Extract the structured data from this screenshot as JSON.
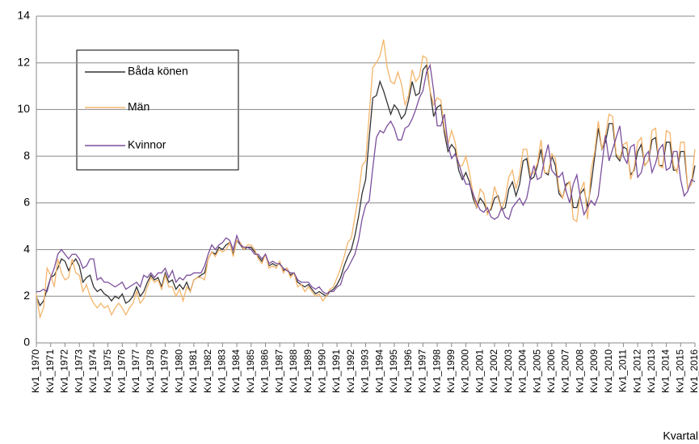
{
  "chart_data": {
    "type": "line",
    "x_label": "Kvartal",
    "categories": [
      "Kv1_1970",
      null,
      null,
      null,
      "Kv1_1971",
      null,
      null,
      null,
      "Kv1_1972",
      null,
      null,
      null,
      "Kv1_1973",
      null,
      null,
      null,
      "Kv1_1974",
      null,
      null,
      null,
      "Kv1_1975",
      null,
      null,
      null,
      "Kv1_1976",
      null,
      null,
      null,
      "Kv1_1977",
      null,
      null,
      null,
      "Kv1_1978",
      null,
      null,
      null,
      "Kv1_1979",
      null,
      null,
      null,
      "Kv1_1980",
      null,
      null,
      null,
      "Kv1_1981",
      null,
      null,
      null,
      "Kv1_1982",
      null,
      null,
      null,
      "Kv1_1983",
      null,
      null,
      null,
      "Kv1_1984",
      null,
      null,
      null,
      "Kv1_1985",
      null,
      null,
      null,
      "Kv1_1986",
      null,
      null,
      null,
      "Kv1_1987",
      null,
      null,
      null,
      "Kv1_1988",
      null,
      null,
      null,
      "Kv1_1989",
      null,
      null,
      null,
      "Kv1_1990",
      null,
      null,
      null,
      "Kv1_1991",
      null,
      null,
      null,
      "Kv1_1992",
      null,
      null,
      null,
      "Kv1_1993",
      null,
      null,
      null,
      "Kv1_1994",
      null,
      null,
      null,
      "Kv1_1995",
      null,
      null,
      null,
      "Kv1_1996",
      null,
      null,
      null,
      "Kv1_1997",
      null,
      null,
      null,
      "Kv1_1998",
      null,
      null,
      null,
      "Kv1_1999",
      null,
      null,
      null,
      "Kv1_2000",
      null,
      null,
      null,
      "Kv1_2001",
      null,
      null,
      null,
      "Kv1_2002",
      null,
      null,
      null,
      "Kv1_2003",
      null,
      null,
      null,
      "Kv1_2004",
      null,
      null,
      null,
      "Kv1_2005",
      null,
      null,
      null,
      "Kv1_2006",
      null,
      null,
      null,
      "Kv1_2007",
      null,
      null,
      null,
      "Kv1_2008",
      null,
      null,
      null,
      "Kv1_2009",
      null,
      null,
      null,
      "Kv1_2010",
      null,
      null,
      null,
      "Kv1_2011",
      null,
      null,
      null,
      "Kv1_2012",
      null,
      null,
      null,
      "Kv1_2013",
      null,
      null,
      null,
      "Kv1_2014",
      null,
      null,
      null,
      "Kv1_2015",
      null,
      null,
      null,
      "Kv1_2016"
    ],
    "series": [
      {
        "name": "Båda könen",
        "color": "#333333",
        "values": [
          2.0,
          1.6,
          1.8,
          2.3,
          2.8,
          2.9,
          3.2,
          3.6,
          3.5,
          3.1,
          3.4,
          3.6,
          3.3,
          2.6,
          2.8,
          2.9,
          2.4,
          2.2,
          2.3,
          2.1,
          2.0,
          1.8,
          2.0,
          1.9,
          2.1,
          1.7,
          1.8,
          2.0,
          2.4,
          2.0,
          2.2,
          2.6,
          2.9,
          2.7,
          2.8,
          2.4,
          3.0,
          2.6,
          2.7,
          2.3,
          2.5,
          2.3,
          2.6,
          2.2,
          2.7,
          2.8,
          2.9,
          3.0,
          3.6,
          3.9,
          3.8,
          4.1,
          4.0,
          4.2,
          4.3,
          3.8,
          4.4,
          4.2,
          4.0,
          4.1,
          4.1,
          3.9,
          3.7,
          3.5,
          3.8,
          3.3,
          3.4,
          3.3,
          3.4,
          3.1,
          3.2,
          2.9,
          3.0,
          2.6,
          2.5,
          2.4,
          2.5,
          2.3,
          2.1,
          2.2,
          2.1,
          2.0,
          2.2,
          2.3,
          2.5,
          2.8,
          3.3,
          3.7,
          4.0,
          4.6,
          5.4,
          6.4,
          7.0,
          8.8,
          10.5,
          10.6,
          11.2,
          10.8,
          10.3,
          9.8,
          10.2,
          10.0,
          9.6,
          9.8,
          10.4,
          11.2,
          10.6,
          10.7,
          11.7,
          11.9,
          10.8,
          9.7,
          10.1,
          10.2,
          9.0,
          8.2,
          8.5,
          8.3,
          7.4,
          7.0,
          7.3,
          6.9,
          6.2,
          5.8,
          6.2,
          6.0,
          5.6,
          5.7,
          6.2,
          6.3,
          5.7,
          5.8,
          6.6,
          6.9,
          6.3,
          6.8,
          7.8,
          7.9,
          7.0,
          7.1,
          7.6,
          8.3,
          7.3,
          7.2,
          8.0,
          7.6,
          6.4,
          6.2,
          6.8,
          6.9,
          5.8,
          5.8,
          6.4,
          6.6,
          5.8,
          6.8,
          8.0,
          9.2,
          8.3,
          8.6,
          9.4,
          9.4,
          8.0,
          7.8,
          8.4,
          8.3,
          7.2,
          7.4,
          8.2,
          8.5,
          7.6,
          7.8,
          8.7,
          8.8,
          7.6,
          7.6,
          8.6,
          8.6,
          7.4,
          7.4,
          8.2,
          8.2,
          6.6,
          6.8,
          7.6
        ]
      },
      {
        "name": "Män",
        "color": "#f5b56b",
        "values": [
          2.1,
          1.1,
          1.5,
          3.2,
          2.9,
          2.4,
          3.6,
          3.0,
          2.7,
          2.8,
          3.6,
          3.0,
          2.9,
          2.2,
          2.5,
          2.0,
          1.7,
          1.5,
          1.7,
          1.5,
          1.6,
          1.2,
          1.5,
          1.7,
          1.5,
          1.2,
          1.5,
          1.7,
          2.2,
          1.7,
          1.9,
          2.4,
          2.8,
          2.6,
          2.7,
          2.3,
          2.9,
          2.4,
          2.4,
          2.0,
          2.3,
          1.8,
          2.4,
          2.2,
          2.7,
          2.8,
          2.8,
          2.7,
          3.6,
          3.9,
          3.7,
          4.0,
          3.9,
          4.0,
          4.3,
          3.7,
          4.4,
          4.3,
          4.0,
          4.2,
          4.2,
          4.0,
          3.6,
          3.4,
          3.8,
          3.2,
          3.3,
          3.2,
          3.5,
          3.0,
          3.2,
          2.8,
          3.0,
          2.4,
          2.5,
          2.2,
          2.4,
          2.2,
          2.0,
          2.1,
          1.8,
          2.0,
          2.3,
          2.4,
          2.8,
          3.2,
          3.7,
          4.3,
          4.5,
          5.4,
          6.3,
          7.6,
          7.8,
          9.8,
          11.8,
          12.0,
          12.3,
          13.0,
          11.8,
          11.2,
          11.1,
          11.6,
          11.1,
          10.2,
          10.6,
          11.7,
          11.2,
          11.4,
          12.3,
          12.2,
          10.8,
          10.2,
          10.5,
          10.4,
          9.2,
          8.5,
          9.1,
          8.6,
          7.6,
          7.6,
          8.0,
          7.3,
          6.4,
          5.8,
          6.6,
          6.4,
          5.5,
          5.8,
          6.7,
          6.2,
          5.7,
          6.2,
          7.1,
          7.4,
          6.6,
          7.2,
          8.3,
          8.3,
          7.2,
          7.3,
          7.7,
          8.7,
          7.3,
          7.3,
          8.1,
          7.9,
          6.6,
          6.2,
          6.7,
          6.9,
          5.3,
          5.2,
          6.5,
          6.9,
          5.3,
          7.4,
          8.2,
          9.5,
          8.3,
          8.9,
          9.8,
          9.7,
          8.1,
          7.9,
          8.5,
          8.6,
          7.0,
          7.5,
          8.6,
          8.8,
          7.6,
          7.8,
          9.1,
          9.2,
          7.6,
          7.5,
          9.1,
          9.0,
          7.6,
          7.3,
          8.6,
          8.6,
          6.6,
          6.8,
          8.3
        ]
      },
      {
        "name": "Kvinnor",
        "color": "#7b4f9d",
        "values": [
          2.2,
          2.2,
          2.3,
          2.2,
          2.8,
          3.2,
          3.8,
          4.0,
          3.8,
          3.6,
          3.8,
          3.8,
          3.6,
          3.2,
          3.3,
          3.6,
          3.6,
          2.7,
          2.8,
          2.6,
          2.6,
          2.5,
          2.4,
          2.5,
          2.6,
          2.3,
          2.4,
          2.5,
          2.6,
          2.4,
          2.9,
          2.8,
          3.0,
          2.8,
          3.0,
          3.0,
          3.2,
          2.8,
          3.1,
          2.6,
          2.8,
          2.7,
          2.9,
          2.9,
          3.0,
          3.0,
          3.0,
          3.3,
          3.8,
          4.2,
          4.0,
          4.2,
          4.3,
          4.5,
          4.4,
          4.0,
          4.6,
          4.2,
          4.1,
          4.1,
          4.0,
          3.8,
          3.8,
          3.6,
          3.8,
          3.4,
          3.5,
          3.4,
          3.4,
          3.2,
          3.1,
          3.0,
          3.0,
          2.7,
          2.6,
          2.6,
          2.6,
          2.4,
          2.3,
          2.4,
          2.2,
          2.1,
          2.2,
          2.2,
          2.4,
          2.5,
          3.0,
          3.2,
          3.5,
          3.8,
          4.4,
          5.3,
          5.9,
          6.1,
          7.5,
          8.8,
          9.1,
          9.0,
          9.3,
          9.5,
          9.2,
          8.7,
          8.7,
          9.2,
          9.3,
          9.6,
          10.0,
          10.5,
          10.8,
          11.6,
          11.9,
          10.8,
          9.3,
          9.3,
          9.8,
          8.5,
          7.9,
          8.1,
          7.7,
          7.2,
          6.8,
          6.8,
          6.4,
          6.0,
          5.7,
          5.6,
          5.8,
          5.4,
          5.3,
          5.4,
          5.8,
          5.4,
          5.3,
          5.8,
          6.0,
          6.2,
          5.9,
          6.2,
          7.0,
          7.6,
          7.0,
          7.1,
          7.9,
          8.5,
          7.4,
          7.2,
          7.1,
          7.3,
          6.5,
          6.0,
          6.8,
          7.2,
          6.2,
          5.5,
          5.8,
          6.1,
          5.9,
          6.3,
          7.6,
          8.9,
          7.8,
          8.3,
          8.8,
          9.3,
          8.0,
          7.7,
          8.4,
          8.5,
          7.1,
          7.3,
          8.0,
          8.2,
          7.3,
          7.7,
          8.3,
          8.5,
          7.4,
          7.5,
          8.2,
          8.2,
          7.0,
          6.3,
          6.5,
          7.0,
          6.9
        ]
      }
    ],
    "ylim": [
      0,
      14
    ],
    "yticks": [
      0,
      2,
      4,
      6,
      8,
      10,
      12,
      14
    ],
    "grid": true
  }
}
